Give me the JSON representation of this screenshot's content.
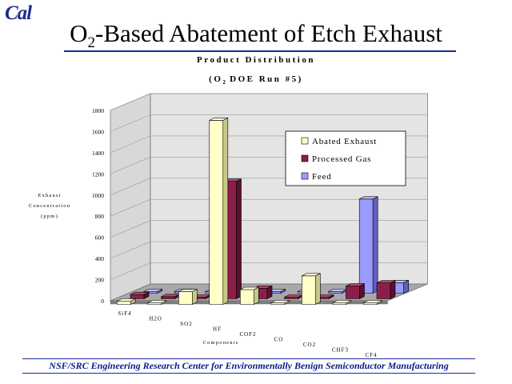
{
  "logo_text": "Cal",
  "slide": {
    "title_prefix": "O",
    "title_subscript": "2",
    "title_suffix": "-Based Abatement of Etch Exhaust",
    "footer": "NSF/SRC Engineering Research Center for Environmentally Benign Semiconductor Manufacturing"
  },
  "chart_data": {
    "type": "bar",
    "title": "Product Distribution",
    "subtitle_prefix": "(O",
    "subtitle_subscript": "2",
    "subtitle_suffix": " DOE Run #5)",
    "ylabel_lines": [
      "Exhaust",
      "Concentration",
      "(ppm)"
    ],
    "xlabel": "Components",
    "categories": [
      "SiF4",
      "H2O",
      "SO2",
      "HF",
      "COF2",
      "CO",
      "CO2",
      "CHF3",
      "CF4"
    ],
    "yticks": [
      "0",
      "200",
      "400",
      "600",
      "800",
      "1000",
      "1200",
      "1400",
      "1600",
      "1800"
    ],
    "ylim": [
      0,
      1800
    ],
    "series": [
      {
        "name": "Abated Exhaust",
        "color": "#ffffc8",
        "side": "#c8c88c",
        "top": "#ffffe6",
        "values": [
          30,
          0,
          120,
          1740,
          140,
          0,
          270,
          0,
          0
        ]
      },
      {
        "name": "Processed Gas",
        "color": "#8c1e4a",
        "side": "#5a1030",
        "top": "#b04a70",
        "values": [
          40,
          20,
          10,
          1110,
          100,
          0,
          0,
          120,
          150
        ]
      },
      {
        "name": "Feed",
        "color": "#9a9aff",
        "side": "#6060c0",
        "top": "#c0c0ff",
        "values": [
          0,
          0,
          0,
          0,
          0,
          0,
          0,
          890,
          100
        ]
      }
    ],
    "legend_position": "top-right",
    "grid": true,
    "view": "3d"
  }
}
